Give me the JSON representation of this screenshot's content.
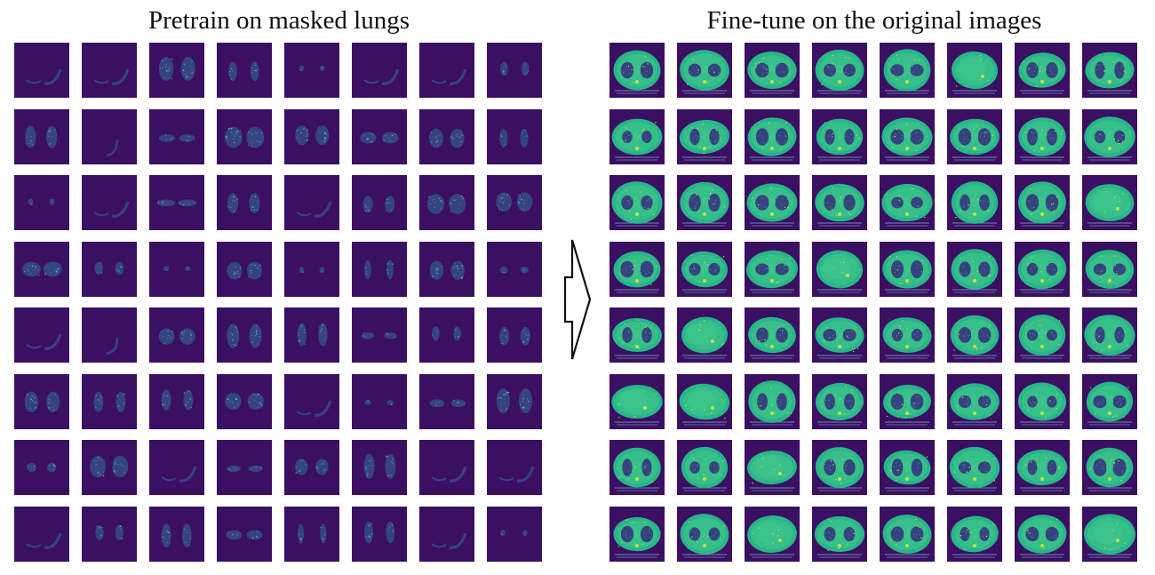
{
  "panels": {
    "left": {
      "title": "Pretrain on masked lungs",
      "rows": 8,
      "cols": 8,
      "style": "masked-lungs"
    },
    "right": {
      "title": "Fine-tune on the original images",
      "rows": 8,
      "cols": 8,
      "style": "original-ct"
    }
  },
  "arrow": {
    "direction": "right"
  },
  "colors": {
    "background": "#3b0f62",
    "lung_fill": "#35437e",
    "lung_speckle": "#4fc2a8",
    "body_fill": "#28b58a",
    "body_light": "#4fd088",
    "bone": "#bfe34a",
    "table_line": "#6b8bb0"
  },
  "icons": {
    "arrow": "hollow-right-arrow-icon"
  }
}
